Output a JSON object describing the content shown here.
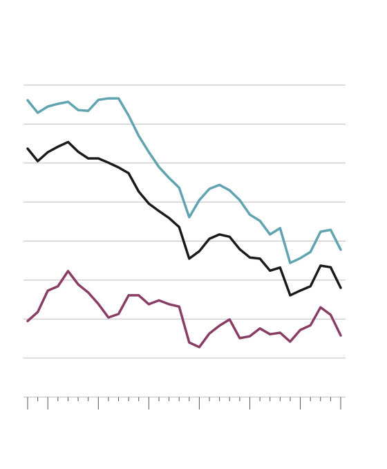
{
  "chart_data": {
    "type": "line",
    "categories": [
      null,
      null,
      null,
      null,
      null,
      null,
      null,
      null,
      null,
      null,
      null,
      null,
      null,
      null,
      null,
      null,
      null,
      null,
      null,
      null,
      null,
      null,
      null,
      null,
      null,
      null,
      null,
      null,
      null,
      null,
      null,
      null
    ],
    "series": [
      {
        "color": "#5fa4b0",
        "values": [
          7.61,
          7.29,
          7.45,
          7.52,
          7.57,
          7.36,
          7.34,
          7.62,
          7.66,
          7.66,
          7.22,
          6.7,
          6.28,
          5.9,
          5.62,
          5.37,
          4.61,
          5.05,
          5.34,
          5.44,
          5.3,
          5.05,
          4.68,
          4.52,
          4.17,
          4.33,
          3.44,
          3.56,
          3.72,
          4.24,
          4.29,
          3.78
        ]
      },
      {
        "color": "#1a1a1a",
        "values": [
          6.37,
          6.05,
          6.28,
          6.42,
          6.54,
          6.29,
          6.12,
          6.12,
          6.01,
          5.89,
          5.74,
          5.27,
          4.96,
          4.77,
          4.59,
          4.36,
          3.55,
          3.74,
          4.06,
          4.17,
          4.11,
          3.79,
          3.58,
          3.55,
          3.24,
          3.32,
          2.61,
          2.73,
          2.84,
          3.37,
          3.33,
          2.8
        ]
      },
      {
        "color": "#8a3d64",
        "values": [
          1.95,
          2.18,
          2.73,
          2.84,
          3.23,
          2.89,
          2.68,
          2.39,
          2.04,
          2.13,
          2.61,
          2.61,
          2.38,
          2.48,
          2.38,
          2.32,
          1.4,
          1.28,
          1.63,
          1.83,
          1.99,
          1.51,
          1.56,
          1.76,
          1.61,
          1.65,
          1.42,
          1.72,
          1.84,
          2.3,
          2.11,
          1.58
        ]
      }
    ],
    "ylim": [
      0,
      8
    ],
    "yticks": [
      0,
      1,
      2,
      3,
      4,
      5,
      6,
      7,
      8
    ],
    "grid": true
  }
}
